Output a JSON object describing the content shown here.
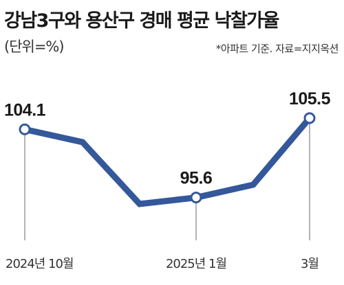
{
  "chart_data": {
    "type": "line",
    "title": "강남3구와 용산구 경매 평균 낙찰가율",
    "unit_label": "(단위=%)",
    "note": "*아파트 기준. 자료=지지옥션",
    "x": [
      "2024년 10월",
      "",
      "",
      "2025년 1월",
      "",
      "3월"
    ],
    "values": [
      104.1,
      102.5,
      94.8,
      95.6,
      97.2,
      105.5
    ],
    "highlighted": [
      {
        "index": 0,
        "label": "104.1",
        "x_label": "2024년 10월"
      },
      {
        "index": 3,
        "label": "95.6",
        "x_label": "2025년 1월"
      },
      {
        "index": 5,
        "label": "105.5",
        "x_label": "3월"
      }
    ],
    "ylim": [
      93,
      107.5
    ],
    "line_color": "#34589a",
    "marker_fill": "#ffffff",
    "guide_color": "#9a9a9a",
    "grid": false
  }
}
